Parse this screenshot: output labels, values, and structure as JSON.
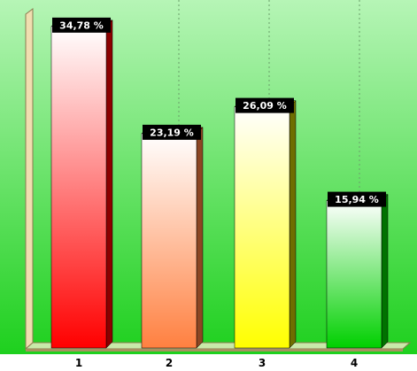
{
  "chart_data": {
    "type": "bar",
    "categories": [
      "1",
      "2",
      "3",
      "4"
    ],
    "values": [
      34.78,
      23.19,
      26.09,
      15.94
    ],
    "data_labels": [
      "34,78 %",
      "23,19 %",
      "26,09 %",
      "15,94 %"
    ],
    "ylim": [
      0,
      36.3
    ],
    "grid": "vertical dotted",
    "legend": "none",
    "colors": {
      "background_top": "#b6f5b6",
      "background_bottom": "#1ed01e",
      "bars": [
        "#ff0000",
        "#ff8040",
        "#ffff00",
        "#00d000"
      ],
      "bar_tops": [
        "#a00000",
        "#a00000",
        "#c8c800",
        "#00a000"
      ],
      "label_box": "#000000",
      "wall": "#f0deb0"
    },
    "title": "",
    "xlabel": "",
    "ylabel": ""
  }
}
